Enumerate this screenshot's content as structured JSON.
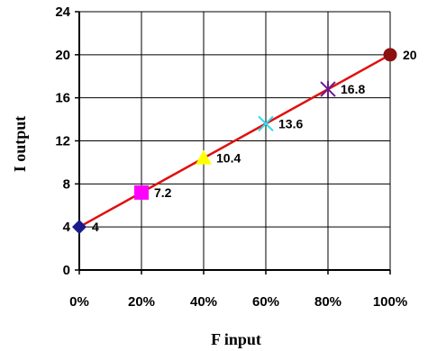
{
  "chart_data": {
    "type": "scatter",
    "title": "",
    "xlabel": "F input",
    "ylabel": "I output",
    "xlim": [
      0,
      100
    ],
    "ylim": [
      0,
      24
    ],
    "x_ticks": [
      0,
      20,
      40,
      60,
      80,
      100
    ],
    "y_ticks": [
      0,
      4,
      8,
      12,
      16,
      20,
      24
    ],
    "x_tick_labels": [
      "0%",
      "20%",
      "40%",
      "60%",
      "80%",
      "100%"
    ],
    "y_tick_labels": [
      "0",
      "4",
      "8",
      "12",
      "16",
      "20",
      "24"
    ],
    "grid": true,
    "legend": "none",
    "line_color": "#e01010",
    "points": [
      {
        "x": 0,
        "y": 4,
        "label": "4",
        "marker": "diamond",
        "color": "#1a1a8c"
      },
      {
        "x": 20,
        "y": 7.2,
        "label": "7.2",
        "marker": "square",
        "color": "#ff00ff"
      },
      {
        "x": 40,
        "y": 10.4,
        "label": "10.4",
        "marker": "triangle",
        "color": "#ffff00"
      },
      {
        "x": 60,
        "y": 13.6,
        "label": "13.6",
        "marker": "x",
        "color": "#33ddee"
      },
      {
        "x": 80,
        "y": 16.8,
        "label": "16.8",
        "marker": "star",
        "color": "#6a1a8a"
      },
      {
        "x": 100,
        "y": 20,
        "label": "20",
        "marker": "circle",
        "color": "#8b1010"
      }
    ]
  }
}
